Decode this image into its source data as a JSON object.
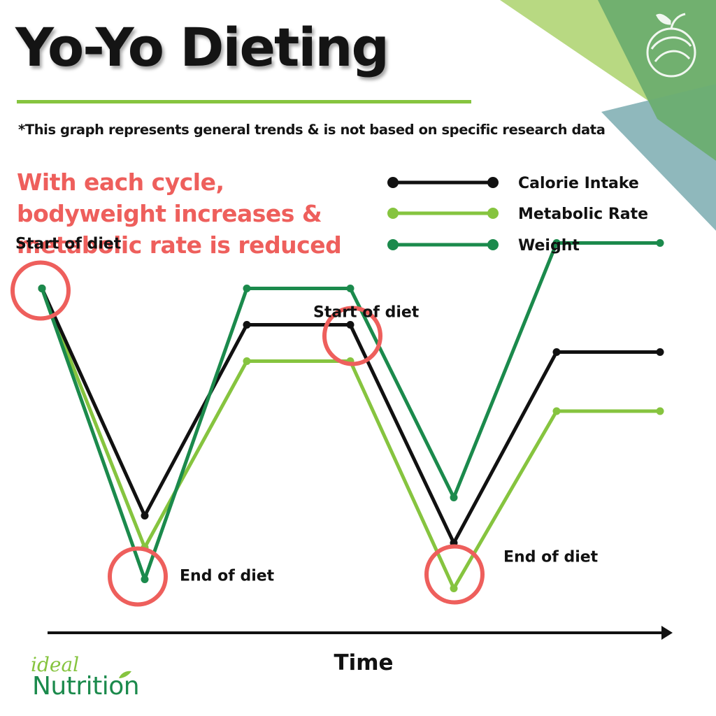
{
  "header": {
    "title": "Yo-Yo Dieting",
    "disclaimer": "*This graph represents general trends &  is not based on specific research data",
    "subtitle_lines": [
      "With each cycle,",
      "bodyweight increases &",
      "metabolic rate is reduced"
    ]
  },
  "brand": {
    "name_top": "ideal",
    "name_bottom": "Nutrition"
  },
  "colors": {
    "calorie_intake": "#111111",
    "metabolic_rate": "#86c43f",
    "weight": "#1b8a4c",
    "highlight_circle": "#ee5f5c",
    "subtitle": "#ee5f5c",
    "corner_light": "#b8d982",
    "corner_mid": "#6aad6e",
    "corner_teal": "#8fb8bc"
  },
  "chart_data": {
    "type": "line",
    "title": "Yo-Yo Dieting",
    "xlabel": "Time",
    "ylabel": "",
    "legend_position": "top-right",
    "grid": false,
    "x": [
      0,
      1,
      2,
      3,
      4,
      5,
      6
    ],
    "ylim": [
      0,
      100
    ],
    "series": [
      {
        "name": "Calorie Intake",
        "color": "#111111",
        "values": [
          75,
          25,
          67,
          67,
          19,
          61,
          61
        ]
      },
      {
        "name": "Metabolic Rate",
        "color": "#86c43f",
        "values": [
          75,
          18,
          59,
          59,
          9,
          48,
          48
        ]
      },
      {
        "name": "Weight",
        "color": "#1b8a4c",
        "values": [
          75,
          11,
          75,
          75,
          29,
          85,
          85
        ]
      }
    ],
    "annotations": [
      {
        "text": "Start of diet",
        "x": 0,
        "series": "Calorie Intake"
      },
      {
        "text": "End of diet",
        "x": 1,
        "series": "Weight"
      },
      {
        "text": "Start of diet",
        "x": 3,
        "series": "Calorie Intake"
      },
      {
        "text": "End of diet",
        "x": 4,
        "series": "Metabolic Rate"
      }
    ]
  }
}
